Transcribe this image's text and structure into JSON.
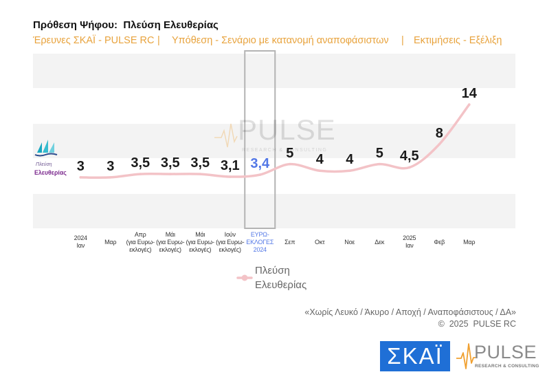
{
  "chart_data": {
    "type": "line",
    "title": "Πρόθεση Ψήφου:  Πλεύση Ελευθερίας",
    "subtitle": [
      "Έρευνες ΣΚΑΪ - PULSE RC",
      "Υπόθεση - Σενάριο με κατανομή αναποφάσιστων",
      "Εκτιμήσεις - Εξέλιξη"
    ],
    "subtitle_separator": "|",
    "categories": [
      "2024\nΙαν",
      "Μαρ",
      "Απρ\n(για Ευρω-\nεκλογές)",
      "Μάι\n(για Ευρω-\nεκλογές)",
      "Μάι\n(για Ευρω-\nεκλογές)",
      "Ιούν\n(για Ευρω-\nεκλογές)",
      "ΕΥΡΩ-\nΕΚΛΟΓΕΣ\n2024",
      "Σεπ",
      "Οκτ",
      "Νοε",
      "Δεκ",
      "2025\nΙαν",
      "Φεβ",
      "Μαρ"
    ],
    "series": [
      {
        "name": "Πλεύση Ελευθερίας",
        "values": [
          3,
          3,
          3.5,
          3.5,
          3.5,
          3.1,
          3.4,
          5,
          4,
          4,
          5,
          4.5,
          8,
          14
        ],
        "labels": [
          "3",
          "3",
          "3,5",
          "3,5",
          "3,5",
          "3,1",
          "3,4",
          "5",
          "4",
          "4",
          "5",
          "4,5",
          "8",
          "14"
        ],
        "color": "#f3c3c7"
      }
    ],
    "highlight": {
      "category_index": 6,
      "color": "#5277e6"
    },
    "ylim": [
      -4.7,
      21.7
    ],
    "smooth": true,
    "grid": false,
    "background_bands": true,
    "legend": "bottom-center"
  },
  "footer": {
    "note": "«Χωρίς Λευκό / Άκυρο / Αποχή / Αναποφάσιστους / ΔΑ»",
    "copyright": "©  2025  PULSE RC"
  },
  "logos": {
    "skai": "ΣΚΑΪ",
    "pulse": "PULSE",
    "pulse_tagline": "RESEARCH & CONSULTING",
    "party_line1": "Πλεύση",
    "party_line2": "Ελευθερίας",
    "party_icon": "sailboat-icon",
    "pulse_icon": "pulse-wave-icon"
  },
  "watermark": {
    "text": "PULSE",
    "tagline": "RESEARCH & CONSULTING"
  },
  "colors": {
    "subtitle": "#e8a33d",
    "bands": "#f3f3f3",
    "highlight_box": "#b3b3b3",
    "skai_blue": "#1f6fd6",
    "party_purple": "#7c2b8f",
    "pulse_orange": "#f0a030"
  }
}
